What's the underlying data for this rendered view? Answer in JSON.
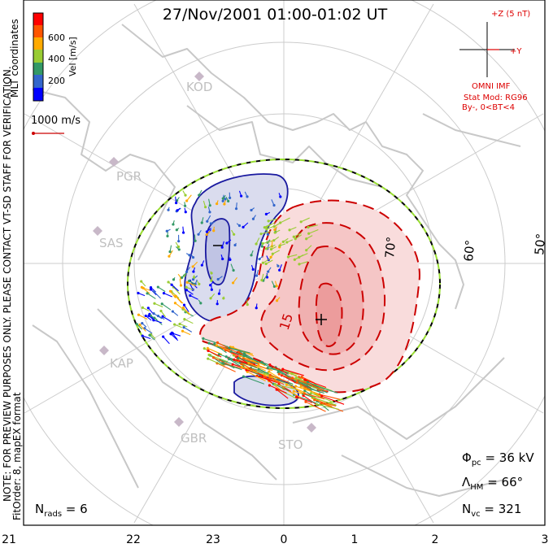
{
  "title": "27/Nov/2001 01:00-01:02 UT",
  "colorbar": {
    "label": "Vel [m/s]",
    "ticks": [
      "600",
      "400",
      "200"
    ],
    "colors": [
      "#ff0000",
      "#ff5500",
      "#ffaa00",
      "#99cc33",
      "#339966",
      "#3366cc",
      "#0000ff"
    ]
  },
  "mlt_label": "MLT coordinates",
  "scale_label": "1000 m/s",
  "imf": {
    "z_label": "+Z (5 nT)",
    "y_label": "+Y",
    "source": "OMNI IMF",
    "model": "Stat Mod: RG96",
    "condition": "By-, 0<BT<4"
  },
  "stations": [
    "KOD",
    "PGR",
    "SAS",
    "KAP",
    "GBR",
    "STO"
  ],
  "lat_labels": [
    "70°",
    "60°",
    "50°"
  ],
  "potential_label": "15",
  "note_lines": [
    "NOTE: FOR PREVIEW PURPOSES ONLY. PLEASE CONTACT VT-SD STAFF FOR VERIFICATION.",
    "FitOrder: 8, mapEX format"
  ],
  "stats": {
    "phi_pc": "Φ",
    "phi_pc_sub": "pc",
    "phi_pc_val": " = 36 kV",
    "lambda_hm": "Λ",
    "lambda_hm_sub": "HM",
    "lambda_hm_val": " = 66°",
    "n_vc": "N",
    "n_vc_sub": "vc",
    "n_vc_val": " = 321",
    "n_rads": "N",
    "n_rads_sub": "rads",
    "n_rads_val": " = 6"
  },
  "mlt_axis": [
    "21",
    "22",
    "23",
    "0",
    "1",
    "2",
    "3"
  ],
  "colors": {
    "grid": "#cccccc",
    "coast": "#c8c8c8",
    "positive": "#cc0000",
    "negative": "#1a1aa0",
    "imf": "#dd0000"
  }
}
